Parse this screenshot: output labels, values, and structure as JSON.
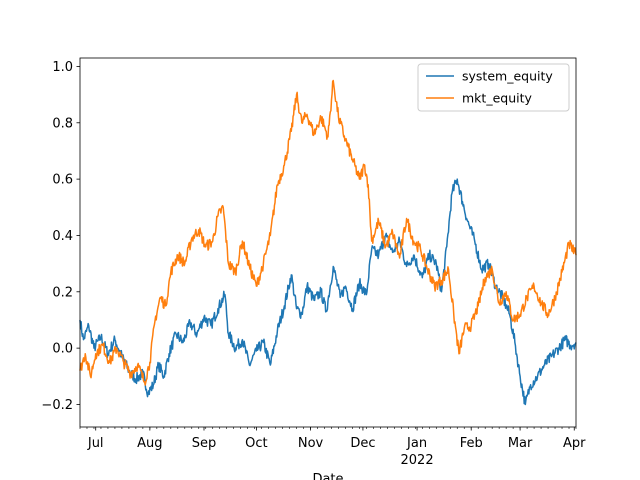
{
  "chart_data": {
    "type": "line",
    "xlabel": "Date",
    "x_range": [
      "2021-06-22",
      "2022-04-02"
    ],
    "ylim": [
      -0.28,
      1.03
    ],
    "grid": false,
    "legend_position": "top-right",
    "yticks": [
      -0.2,
      0.0,
      0.2,
      0.4,
      0.6,
      0.8,
      1.0
    ],
    "ytick_labels": [
      "−0.2",
      "0.0",
      "0.2",
      "0.4",
      "0.6",
      "0.8",
      "1.0"
    ],
    "xticks": [
      {
        "date": "2021-07-01",
        "label": "Jul",
        "sublabel": ""
      },
      {
        "date": "2021-08-01",
        "label": "Aug",
        "sublabel": ""
      },
      {
        "date": "2021-09-01",
        "label": "Sep",
        "sublabel": ""
      },
      {
        "date": "2021-10-01",
        "label": "Oct",
        "sublabel": ""
      },
      {
        "date": "2021-11-01",
        "label": "Nov",
        "sublabel": ""
      },
      {
        "date": "2021-12-01",
        "label": "Dec",
        "sublabel": ""
      },
      {
        "date": "2022-01-01",
        "label": "Jan",
        "sublabel": "2022"
      },
      {
        "date": "2022-02-01",
        "label": "Feb",
        "sublabel": ""
      },
      {
        "date": "2022-03-01",
        "label": "Mar",
        "sublabel": ""
      },
      {
        "date": "2022-04-01",
        "label": "Apr",
        "sublabel": ""
      }
    ],
    "series": [
      {
        "name": "system_equity",
        "color": "#1f77b4",
        "points": [
          [
            "2021-06-22",
            0.1
          ],
          [
            "2021-06-24",
            0.03
          ],
          [
            "2021-06-27",
            0.08
          ],
          [
            "2021-06-30",
            0.0
          ],
          [
            "2021-07-04",
            0.04
          ],
          [
            "2021-07-08",
            -0.02
          ],
          [
            "2021-07-12",
            0.03
          ],
          [
            "2021-07-16",
            -0.03
          ],
          [
            "2021-07-20",
            -0.08
          ],
          [
            "2021-07-24",
            -0.11
          ],
          [
            "2021-07-28",
            -0.09
          ],
          [
            "2021-07-31",
            -0.16
          ],
          [
            "2021-08-03",
            -0.13
          ],
          [
            "2021-08-06",
            -0.06
          ],
          [
            "2021-08-09",
            -0.1
          ],
          [
            "2021-08-12",
            -0.02
          ],
          [
            "2021-08-16",
            0.05
          ],
          [
            "2021-08-20",
            0.02
          ],
          [
            "2021-08-24",
            0.09
          ],
          [
            "2021-08-28",
            0.05
          ],
          [
            "2021-09-01",
            0.11
          ],
          [
            "2021-09-05",
            0.08
          ],
          [
            "2021-09-09",
            0.14
          ],
          [
            "2021-09-13",
            0.19
          ],
          [
            "2021-09-15",
            0.05
          ],
          [
            "2021-09-19",
            0.0
          ],
          [
            "2021-09-23",
            0.03
          ],
          [
            "2021-09-27",
            -0.06
          ],
          [
            "2021-10-01",
            -0.01
          ],
          [
            "2021-10-05",
            0.02
          ],
          [
            "2021-10-09",
            -0.06
          ],
          [
            "2021-10-13",
            0.06
          ],
          [
            "2021-10-17",
            0.15
          ],
          [
            "2021-10-21",
            0.26
          ],
          [
            "2021-10-24",
            0.14
          ],
          [
            "2021-10-27",
            0.12
          ],
          [
            "2021-10-30",
            0.22
          ],
          [
            "2021-11-03",
            0.17
          ],
          [
            "2021-11-07",
            0.2
          ],
          [
            "2021-11-10",
            0.13
          ],
          [
            "2021-11-14",
            0.29
          ],
          [
            "2021-11-18",
            0.18
          ],
          [
            "2021-11-21",
            0.22
          ],
          [
            "2021-11-25",
            0.14
          ],
          [
            "2021-11-29",
            0.23
          ],
          [
            "2021-12-03",
            0.19
          ],
          [
            "2021-12-06",
            0.35
          ],
          [
            "2021-12-10",
            0.33
          ],
          [
            "2021-12-14",
            0.4
          ],
          [
            "2021-12-18",
            0.34
          ],
          [
            "2021-12-22",
            0.38
          ],
          [
            "2021-12-26",
            0.29
          ],
          [
            "2021-12-30",
            0.33
          ],
          [
            "2022-01-04",
            0.25
          ],
          [
            "2022-01-08",
            0.33
          ],
          [
            "2022-01-12",
            0.3
          ],
          [
            "2022-01-15",
            0.2
          ],
          [
            "2022-01-18",
            0.36
          ],
          [
            "2022-01-21",
            0.55
          ],
          [
            "2022-01-24",
            0.6
          ],
          [
            "2022-01-27",
            0.52
          ],
          [
            "2022-01-30",
            0.45
          ],
          [
            "2022-02-03",
            0.38
          ],
          [
            "2022-02-07",
            0.28
          ],
          [
            "2022-02-11",
            0.3
          ],
          [
            "2022-02-15",
            0.22
          ],
          [
            "2022-02-19",
            0.18
          ],
          [
            "2022-02-23",
            0.12
          ],
          [
            "2022-02-26",
            0.02
          ],
          [
            "2022-03-01",
            -0.1
          ],
          [
            "2022-03-04",
            -0.2
          ],
          [
            "2022-03-07",
            -0.13
          ],
          [
            "2022-03-11",
            -0.1
          ],
          [
            "2022-03-15",
            -0.06
          ],
          [
            "2022-03-19",
            -0.03
          ],
          [
            "2022-03-23",
            0.0
          ],
          [
            "2022-03-27",
            0.03
          ],
          [
            "2022-03-30",
            0.01
          ],
          [
            "2022-04-02",
            0.02
          ]
        ]
      },
      {
        "name": "mkt_equity",
        "color": "#ff7f0e",
        "points": [
          [
            "2021-06-22",
            -0.08
          ],
          [
            "2021-06-25",
            -0.02
          ],
          [
            "2021-06-28",
            -0.1
          ],
          [
            "2021-07-01",
            -0.02
          ],
          [
            "2021-07-05",
            0.01
          ],
          [
            "2021-07-09",
            -0.05
          ],
          [
            "2021-07-13",
            0.0
          ],
          [
            "2021-07-17",
            -0.05
          ],
          [
            "2021-07-21",
            -0.09
          ],
          [
            "2021-07-25",
            -0.06
          ],
          [
            "2021-07-29",
            -0.12
          ],
          [
            "2021-08-01",
            -0.05
          ],
          [
            "2021-08-04",
            0.1
          ],
          [
            "2021-08-07",
            0.18
          ],
          [
            "2021-08-10",
            0.15
          ],
          [
            "2021-08-13",
            0.27
          ],
          [
            "2021-08-17",
            0.33
          ],
          [
            "2021-08-21",
            0.3
          ],
          [
            "2021-08-25",
            0.39
          ],
          [
            "2021-08-29",
            0.42
          ],
          [
            "2021-09-02",
            0.36
          ],
          [
            "2021-09-06",
            0.38
          ],
          [
            "2021-09-09",
            0.47
          ],
          [
            "2021-09-12",
            0.5
          ],
          [
            "2021-09-15",
            0.3
          ],
          [
            "2021-09-19",
            0.27
          ],
          [
            "2021-09-23",
            0.38
          ],
          [
            "2021-09-27",
            0.29
          ],
          [
            "2021-10-01",
            0.22
          ],
          [
            "2021-10-05",
            0.3
          ],
          [
            "2021-10-09",
            0.4
          ],
          [
            "2021-10-13",
            0.58
          ],
          [
            "2021-10-17",
            0.65
          ],
          [
            "2021-10-21",
            0.77
          ],
          [
            "2021-10-24",
            0.9
          ],
          [
            "2021-10-27",
            0.8
          ],
          [
            "2021-10-30",
            0.83
          ],
          [
            "2021-11-03",
            0.76
          ],
          [
            "2021-11-07",
            0.82
          ],
          [
            "2021-11-11",
            0.75
          ],
          [
            "2021-11-14",
            0.95
          ],
          [
            "2021-11-17",
            0.82
          ],
          [
            "2021-11-21",
            0.74
          ],
          [
            "2021-11-25",
            0.67
          ],
          [
            "2021-11-29",
            0.6
          ],
          [
            "2021-12-02",
            0.65
          ],
          [
            "2021-12-04",
            0.58
          ],
          [
            "2021-12-06",
            0.38
          ],
          [
            "2021-12-10",
            0.45
          ],
          [
            "2021-12-14",
            0.36
          ],
          [
            "2021-12-18",
            0.41
          ],
          [
            "2021-12-22",
            0.32
          ],
          [
            "2021-12-26",
            0.46
          ],
          [
            "2021-12-30",
            0.38
          ],
          [
            "2022-01-03",
            0.35
          ],
          [
            "2022-01-07",
            0.28
          ],
          [
            "2022-01-11",
            0.22
          ],
          [
            "2022-01-15",
            0.24
          ],
          [
            "2022-01-19",
            0.28
          ],
          [
            "2022-01-22",
            0.12
          ],
          [
            "2022-01-25",
            -0.02
          ],
          [
            "2022-01-28",
            0.07
          ],
          [
            "2022-02-01",
            0.08
          ],
          [
            "2022-02-05",
            0.15
          ],
          [
            "2022-02-09",
            0.25
          ],
          [
            "2022-02-13",
            0.28
          ],
          [
            "2022-02-17",
            0.16
          ],
          [
            "2022-02-21",
            0.2
          ],
          [
            "2022-02-25",
            0.1
          ],
          [
            "2022-03-01",
            0.12
          ],
          [
            "2022-03-05",
            0.18
          ],
          [
            "2022-03-09",
            0.22
          ],
          [
            "2022-03-13",
            0.16
          ],
          [
            "2022-03-17",
            0.12
          ],
          [
            "2022-03-21",
            0.18
          ],
          [
            "2022-03-25",
            0.27
          ],
          [
            "2022-03-29",
            0.37
          ],
          [
            "2022-04-02",
            0.33
          ]
        ]
      }
    ]
  }
}
